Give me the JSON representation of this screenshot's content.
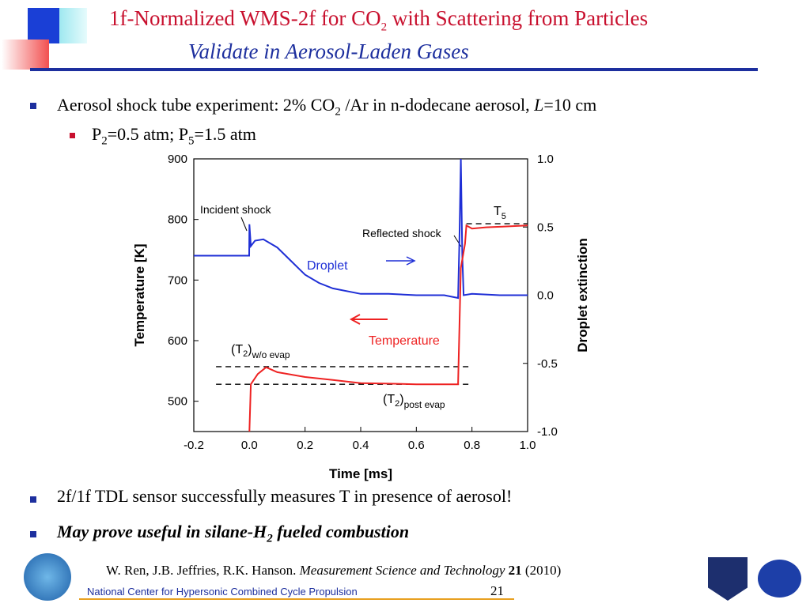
{
  "header": {
    "title": [
      "1f-Normalized WMS-2f for CO",
      "2",
      "with Scattering from Particles"
    ],
    "subtitle": "Validate in Aerosol-Laden Gases"
  },
  "bullets": [
    [
      "Aerosol shock tube experiment: 2% CO",
      "2",
      "/Ar in n-dodecane aerosol,",
      "L",
      "=10 cm"
    ],
    [
      "P",
      "2",
      "=0.5 atm; P",
      "5",
      "=1.5 atm"
    ],
    [
      "2f/1f TDL sensor successfully measures T in presence of aerosol!"
    ],
    [
      "May prove useful in silane-H",
      "2",
      "fueled combustion"
    ]
  ],
  "citation": [
    "W. Ren, J.B. Jeffries, R.K. Hanson.",
    "Measurement Science and Technology",
    "21",
    "(2010)"
  ],
  "footer": {
    "organization": "National Center for Hypersonic Combined Cycle Propulsion",
    "page": "21"
  },
  "chart_data": {
    "type": "line",
    "xlabel": "Time [ms]",
    "ylabel": "Temperature [K]",
    "y2label": "Droplet extinction",
    "xlim": [
      -0.2,
      1.0
    ],
    "xticks": [
      -0.2,
      {
        "value": 0,
        "label": "0.0"
      },
      0.2,
      0.4,
      0.6,
      0.8,
      {
        "value": 1,
        "label": "1.0"
      }
    ],
    "ylim": [
      450,
      900
    ],
    "yticks": [
      500,
      600,
      700,
      800,
      900
    ],
    "y2lim": [
      -1,
      1
    ],
    "y2ticks": [
      {
        "value": -1,
        "label": "-1.0"
      },
      -0.5,
      {
        "value": 0,
        "label": "0.0"
      },
      0.5,
      {
        "value": 1,
        "label": "1.0"
      }
    ],
    "series": [
      {
        "name": "Droplet",
        "color": "#1f2fd6",
        "axis": "y2",
        "x": [
          -0.2,
          -0.001,
          0,
          0.005,
          0.02,
          0.05,
          0.1,
          0.15,
          0.2,
          0.25,
          0.3,
          0.4,
          0.5,
          0.6,
          0.7,
          0.75,
          0.755,
          0.76,
          0.765,
          0.77,
          0.8,
          0.9,
          1.0
        ],
        "values": [
          0.29,
          0.29,
          0.52,
          0.36,
          0.4,
          0.41,
          0.35,
          0.25,
          0.15,
          0.09,
          0.05,
          0.01,
          0.01,
          0,
          0,
          -0.02,
          0.4,
          1.0,
          0.3,
          0,
          0.01,
          0,
          0
        ]
      },
      {
        "name": "Temperature",
        "color": "#ee2222",
        "x": [
          0,
          0.005,
          0.03,
          0.06,
          0.1,
          0.2,
          0.3,
          0.4,
          0.5,
          0.6,
          0.7,
          0.75,
          0.76,
          0.775,
          0.78,
          0.8,
          0.85,
          0.9,
          1.0
        ],
        "values": [
          450,
          528,
          545,
          556,
          548,
          540,
          535,
          530,
          529,
          528,
          528,
          528,
          720,
          760,
          790,
          785,
          787,
          788,
          790
        ]
      }
    ],
    "reference_lines": [
      {
        "value": 557,
        "x": [
          -0.12,
          0.8
        ]
      },
      {
        "value": 528,
        "x": [
          -0.12,
          0.8
        ]
      },
      {
        "value": 793,
        "x": [
          0.78,
          1.0
        ]
      }
    ],
    "annotations": {
      "incident": "Incident shock",
      "reflected": "Reflected shock",
      "t5": [
        "T",
        "5"
      ],
      "t2_wo": [
        "(T",
        "2",
        ")",
        "w/o evap"
      ],
      "t2_post": [
        "(T",
        "2",
        ")",
        "post evap"
      ]
    }
  }
}
